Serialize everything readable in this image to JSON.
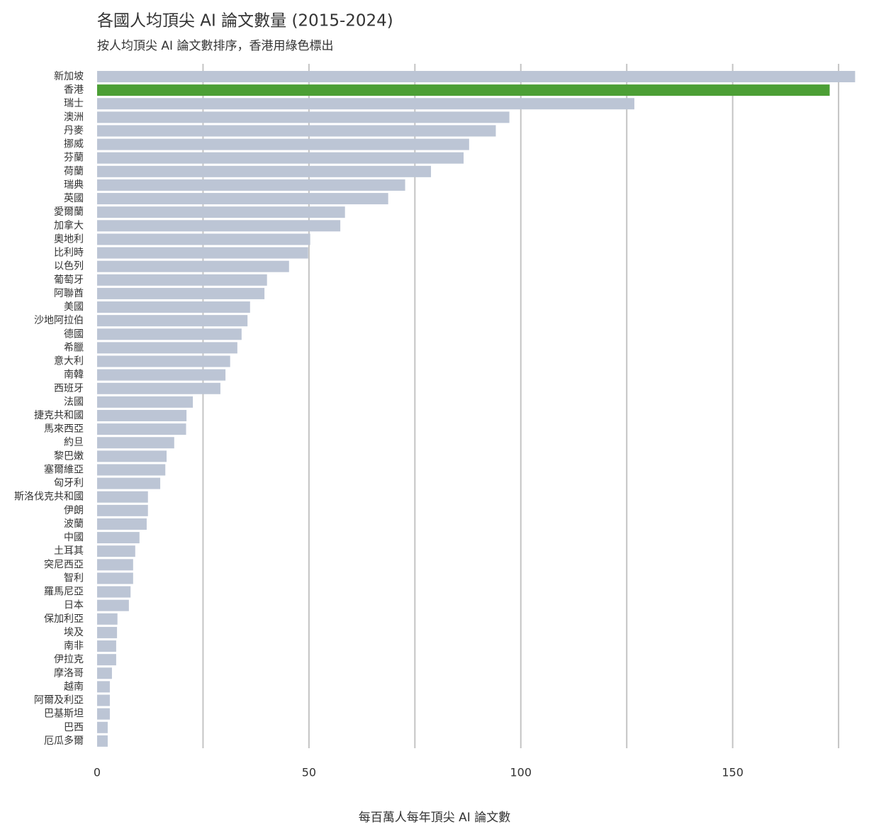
{
  "chart_data": {
    "type": "barh",
    "title": "各國人均頂尖 AI 論文數量 (2015-2024)",
    "subtitle": "按人均頂尖 AI 論文數排序，香港用綠色標出",
    "x_label": "每百萬人每年頂尖 AI 論文數",
    "categories": [
      "新加坡",
      "香港",
      "瑞士",
      "澳洲",
      "丹麥",
      "挪威",
      "芬蘭",
      "荷蘭",
      "瑞典",
      "英國",
      "愛爾蘭",
      "加拿大",
      "奧地利",
      "比利時",
      "以色列",
      "葡萄牙",
      "阿聯酋",
      "美國",
      "沙地阿拉伯",
      "德國",
      "希臘",
      "意大利",
      "南韓",
      "西班牙",
      "法國",
      "捷克共和國",
      "馬來西亞",
      "約旦",
      "黎巴嫩",
      "塞爾維亞",
      "匈牙利",
      "斯洛伐克共和國",
      "伊朗",
      "波蘭",
      "中國",
      "土耳其",
      "突尼西亞",
      "智利",
      "羅馬尼亞",
      "日本",
      "保加利亞",
      "埃及",
      "南非",
      "伊拉克",
      "摩洛哥",
      "越南",
      "阿爾及利亞",
      "巴基斯坦",
      "巴西",
      "厄瓜多爾"
    ],
    "values": [
      178.9,
      172.9,
      126.8,
      97.3,
      94.1,
      87.8,
      86.5,
      78.8,
      72.7,
      68.7,
      58.5,
      57.4,
      50.3,
      49.8,
      45.3,
      40.1,
      39.5,
      36.1,
      35.5,
      34.1,
      33.1,
      31.4,
      30.3,
      29.1,
      22.6,
      21.1,
      21.0,
      18.2,
      16.4,
      16.1,
      14.9,
      12.0,
      12.0,
      11.7,
      10.0,
      9.0,
      8.5,
      8.5,
      7.9,
      7.5,
      4.8,
      4.7,
      4.5,
      4.5,
      3.5,
      3.0,
      3.0,
      3.0,
      2.5,
      2.5
    ],
    "colors": [
      "#bcc5d5",
      "#4c9f35",
      "#bcc5d5",
      "#bcc5d5",
      "#bcc5d5",
      "#bcc5d5",
      "#bcc5d5",
      "#bcc5d5",
      "#bcc5d5",
      "#bcc5d5",
      "#bcc5d5",
      "#bcc5d5",
      "#bcc5d5",
      "#bcc5d5",
      "#bcc5d5",
      "#bcc5d5",
      "#bcc5d5",
      "#bcc5d5",
      "#bcc5d5",
      "#bcc5d5",
      "#bcc5d5",
      "#bcc5d5",
      "#bcc5d5",
      "#bcc5d5",
      "#bcc5d5",
      "#bcc5d5",
      "#bcc5d5",
      "#bcc5d5",
      "#bcc5d5",
      "#bcc5d5",
      "#bcc5d5",
      "#bcc5d5",
      "#bcc5d5",
      "#bcc5d5",
      "#bcc5d5",
      "#bcc5d5",
      "#bcc5d5",
      "#bcc5d5",
      "#bcc5d5",
      "#bcc5d5",
      "#bcc5d5",
      "#bcc5d5",
      "#bcc5d5",
      "#bcc5d5",
      "#bcc5d5",
      "#bcc5d5",
      "#bcc5d5",
      "#bcc5d5",
      "#bcc5d5",
      "#bcc5d5"
    ],
    "xlim": [
      0,
      179
    ],
    "xticks": [
      0,
      50,
      100,
      150
    ],
    "xgrid": [
      25,
      50,
      75,
      100,
      125,
      150,
      175
    ]
  }
}
